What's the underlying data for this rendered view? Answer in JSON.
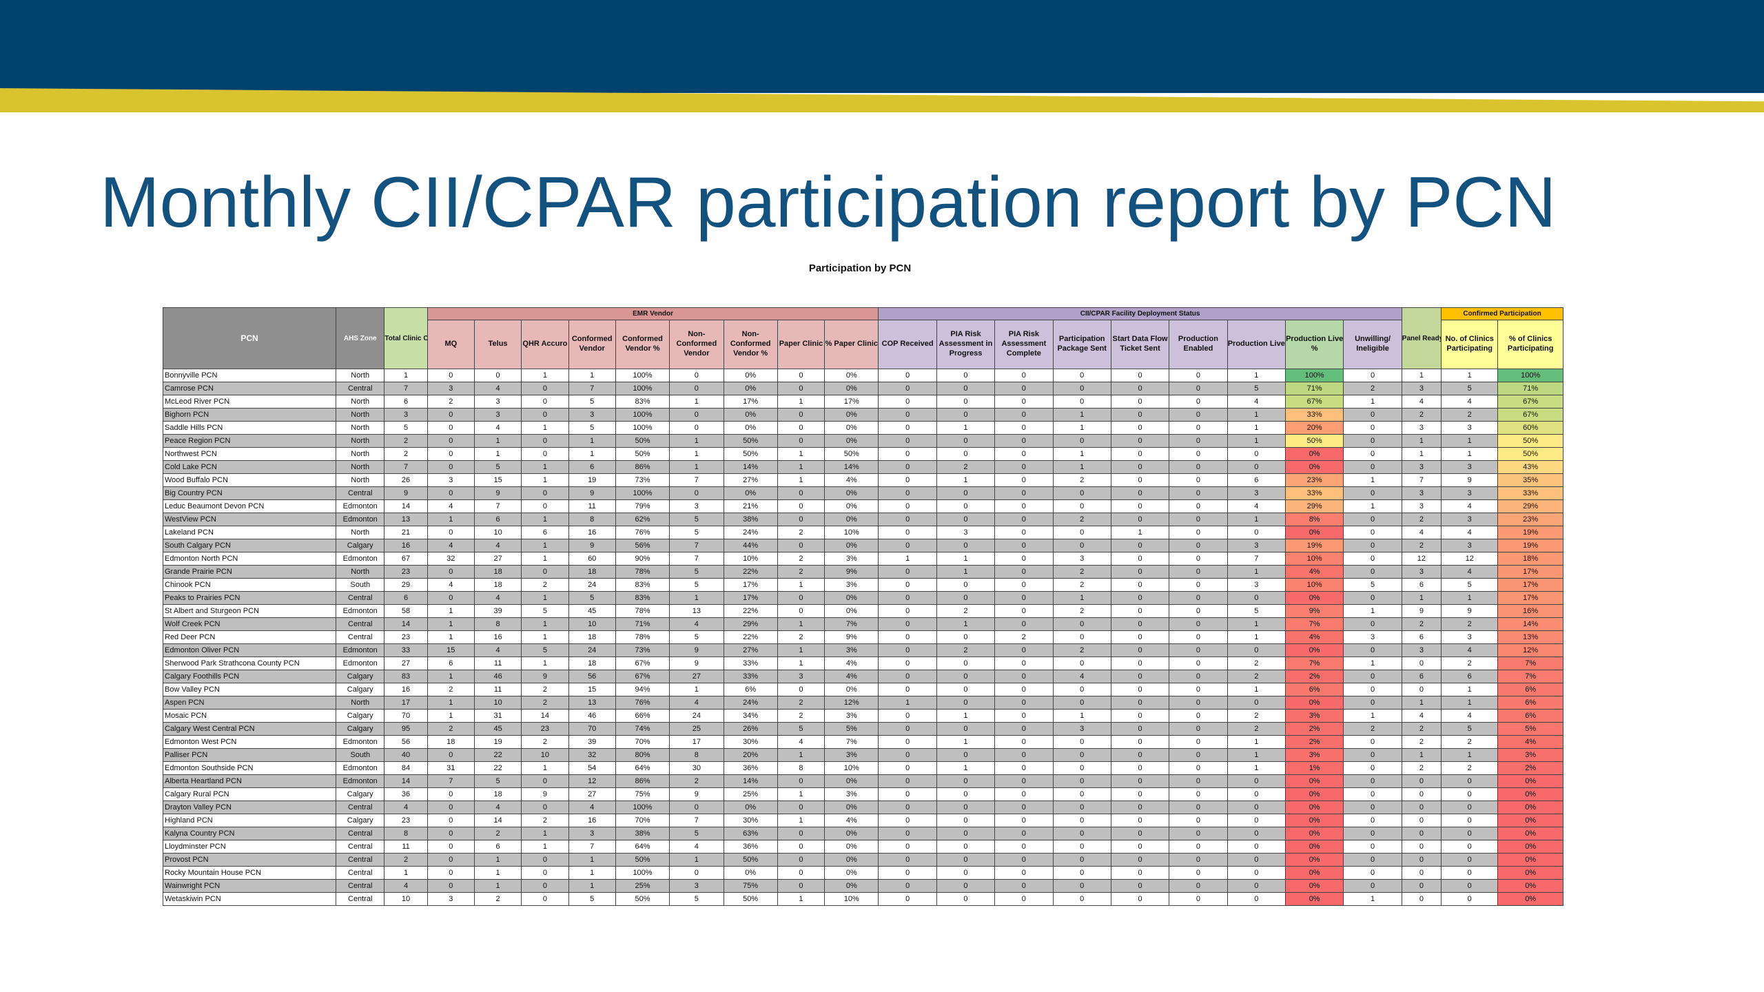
{
  "slide": {
    "title": "Monthly CII/CPAR participation report by PCN",
    "subtitle": "Participation by PCN"
  },
  "colors": {
    "banner": "#00426E",
    "stripe": "#D9C430",
    "title": "#13517E",
    "scale_low": "#F8696B",
    "scale_mid": "#FFEB84",
    "scale_high": "#63BE7B"
  },
  "table": {
    "groups": {
      "emr_vendor": "EMR Vendor",
      "deployment": "CII/CPAR Facility Deployment Status",
      "confirmed": "Confirmed Participation"
    },
    "headers": [
      "PCN",
      "AHS Zone",
      "Total Clinic Count (CRM)",
      "MQ",
      "Telus",
      "QHR Accuro",
      "Conformed Vendor",
      "Conformed Vendor %",
      "Non-Conformed Vendor",
      "Non-Conformed Vendor %",
      "Paper Clinic",
      "% Paper Clinic",
      "COP Received",
      "PIA Risk Assessment in Progress",
      "PIA Risk Assessment Complete",
      "Participation Package Sent",
      "Start Data Flow Ticket Sent",
      "Production Enabled",
      "Production Live",
      "Production Live %",
      "Unwilling/ Ineligible",
      "Panel Ready",
      "No. of Clinics Participating",
      "% of Clinics Participating"
    ],
    "rows": [
      [
        "Bonnyville PCN",
        "North",
        "1",
        "0",
        "0",
        "1",
        "1",
        "100%",
        "0",
        "0%",
        "0",
        "0%",
        "0",
        "0",
        "0",
        "0",
        "0",
        "0",
        "1",
        "100%",
        "0",
        "1",
        "1",
        "100%"
      ],
      [
        "Camrose PCN",
        "Central",
        "7",
        "3",
        "4",
        "0",
        "7",
        "100%",
        "0",
        "0%",
        "0",
        "0%",
        "0",
        "0",
        "0",
        "0",
        "0",
        "0",
        "5",
        "71%",
        "2",
        "3",
        "5",
        "71%"
      ],
      [
        "McLeod River PCN",
        "North",
        "6",
        "2",
        "3",
        "0",
        "5",
        "83%",
        "1",
        "17%",
        "1",
        "17%",
        "0",
        "0",
        "0",
        "0",
        "0",
        "0",
        "4",
        "67%",
        "1",
        "4",
        "4",
        "67%"
      ],
      [
        "Bighorn PCN",
        "North",
        "3",
        "0",
        "3",
        "0",
        "3",
        "100%",
        "0",
        "0%",
        "0",
        "0%",
        "0",
        "0",
        "0",
        "1",
        "0",
        "0",
        "1",
        "33%",
        "0",
        "2",
        "2",
        "67%"
      ],
      [
        "Saddle Hills PCN",
        "North",
        "5",
        "0",
        "4",
        "1",
        "5",
        "100%",
        "0",
        "0%",
        "0",
        "0%",
        "0",
        "1",
        "0",
        "1",
        "0",
        "0",
        "1",
        "20%",
        "0",
        "3",
        "3",
        "60%"
      ],
      [
        "Peace Region PCN",
        "North",
        "2",
        "0",
        "1",
        "0",
        "1",
        "50%",
        "1",
        "50%",
        "0",
        "0%",
        "0",
        "0",
        "0",
        "0",
        "0",
        "0",
        "1",
        "50%",
        "0",
        "1",
        "1",
        "50%"
      ],
      [
        "Northwest PCN",
        "North",
        "2",
        "0",
        "1",
        "0",
        "1",
        "50%",
        "1",
        "50%",
        "1",
        "50%",
        "0",
        "0",
        "0",
        "1",
        "0",
        "0",
        "0",
        "0%",
        "0",
        "1",
        "1",
        "50%"
      ],
      [
        "Cold Lake PCN",
        "North",
        "7",
        "0",
        "5",
        "1",
        "6",
        "86%",
        "1",
        "14%",
        "1",
        "14%",
        "0",
        "2",
        "0",
        "1",
        "0",
        "0",
        "0",
        "0%",
        "0",
        "3",
        "3",
        "43%"
      ],
      [
        "Wood Buffalo PCN",
        "North",
        "26",
        "3",
        "15",
        "1",
        "19",
        "73%",
        "7",
        "27%",
        "1",
        "4%",
        "0",
        "1",
        "0",
        "2",
        "0",
        "0",
        "6",
        "23%",
        "1",
        "7",
        "9",
        "35%"
      ],
      [
        "Big Country PCN",
        "Central",
        "9",
        "0",
        "9",
        "0",
        "9",
        "100%",
        "0",
        "0%",
        "0",
        "0%",
        "0",
        "0",
        "0",
        "0",
        "0",
        "0",
        "3",
        "33%",
        "0",
        "3",
        "3",
        "33%"
      ],
      [
        "Leduc Beaumont Devon PCN",
        "Edmonton",
        "14",
        "4",
        "7",
        "0",
        "11",
        "79%",
        "3",
        "21%",
        "0",
        "0%",
        "0",
        "0",
        "0",
        "0",
        "0",
        "0",
        "4",
        "29%",
        "1",
        "3",
        "4",
        "29%"
      ],
      [
        "WestView PCN",
        "Edmonton",
        "13",
        "1",
        "6",
        "1",
        "8",
        "62%",
        "5",
        "38%",
        "0",
        "0%",
        "0",
        "0",
        "0",
        "2",
        "0",
        "0",
        "1",
        "8%",
        "0",
        "2",
        "3",
        "23%"
      ],
      [
        "Lakeland PCN",
        "North",
        "21",
        "0",
        "10",
        "6",
        "16",
        "76%",
        "5",
        "24%",
        "2",
        "10%",
        "0",
        "3",
        "0",
        "0",
        "1",
        "0",
        "0",
        "0%",
        "0",
        "4",
        "4",
        "19%"
      ],
      [
        "South Calgary PCN",
        "Calgary",
        "16",
        "4",
        "4",
        "1",
        "9",
        "56%",
        "7",
        "44%",
        "0",
        "0%",
        "0",
        "0",
        "0",
        "0",
        "0",
        "0",
        "3",
        "19%",
        "0",
        "2",
        "3",
        "19%"
      ],
      [
        "Edmonton North PCN",
        "Edmonton",
        "67",
        "32",
        "27",
        "1",
        "60",
        "90%",
        "7",
        "10%",
        "2",
        "3%",
        "1",
        "1",
        "0",
        "3",
        "0",
        "0",
        "7",
        "10%",
        "0",
        "12",
        "12",
        "18%"
      ],
      [
        "Grande Prairie PCN",
        "North",
        "23",
        "0",
        "18",
        "0",
        "18",
        "78%",
        "5",
        "22%",
        "2",
        "9%",
        "0",
        "1",
        "0",
        "2",
        "0",
        "0",
        "1",
        "4%",
        "0",
        "3",
        "4",
        "17%"
      ],
      [
        "Chinook PCN",
        "South",
        "29",
        "4",
        "18",
        "2",
        "24",
        "83%",
        "5",
        "17%",
        "1",
        "3%",
        "0",
        "0",
        "0",
        "2",
        "0",
        "0",
        "3",
        "10%",
        "5",
        "6",
        "5",
        "17%"
      ],
      [
        "Peaks to Prairies PCN",
        "Central",
        "6",
        "0",
        "4",
        "1",
        "5",
        "83%",
        "1",
        "17%",
        "0",
        "0%",
        "0",
        "0",
        "0",
        "1",
        "0",
        "0",
        "0",
        "0%",
        "0",
        "1",
        "1",
        "17%"
      ],
      [
        "St Albert and Sturgeon PCN",
        "Edmonton",
        "58",
        "1",
        "39",
        "5",
        "45",
        "78%",
        "13",
        "22%",
        "0",
        "0%",
        "0",
        "2",
        "0",
        "2",
        "0",
        "0",
        "5",
        "9%",
        "1",
        "9",
        "9",
        "16%"
      ],
      [
        "Wolf Creek PCN",
        "Central",
        "14",
        "1",
        "8",
        "1",
        "10",
        "71%",
        "4",
        "29%",
        "1",
        "7%",
        "0",
        "1",
        "0",
        "0",
        "0",
        "0",
        "1",
        "7%",
        "0",
        "2",
        "2",
        "14%"
      ],
      [
        "Red Deer PCN",
        "Central",
        "23",
        "1",
        "16",
        "1",
        "18",
        "78%",
        "5",
        "22%",
        "2",
        "9%",
        "0",
        "0",
        "2",
        "0",
        "0",
        "0",
        "1",
        "4%",
        "3",
        "6",
        "3",
        "13%"
      ],
      [
        "Edmonton Oliver PCN",
        "Edmonton",
        "33",
        "15",
        "4",
        "5",
        "24",
        "73%",
        "9",
        "27%",
        "1",
        "3%",
        "0",
        "2",
        "0",
        "2",
        "0",
        "0",
        "0",
        "0%",
        "0",
        "3",
        "4",
        "12%"
      ],
      [
        "Sherwood Park Strathcona County PCN",
        "Edmonton",
        "27",
        "6",
        "11",
        "1",
        "18",
        "67%",
        "9",
        "33%",
        "1",
        "4%",
        "0",
        "0",
        "0",
        "0",
        "0",
        "0",
        "2",
        "7%",
        "1",
        "0",
        "2",
        "7%"
      ],
      [
        "Calgary Foothills PCN",
        "Calgary",
        "83",
        "1",
        "46",
        "9",
        "56",
        "67%",
        "27",
        "33%",
        "3",
        "4%",
        "0",
        "0",
        "0",
        "4",
        "0",
        "0",
        "2",
        "2%",
        "0",
        "6",
        "6",
        "7%"
      ],
      [
        "Bow Valley PCN",
        "Calgary",
        "16",
        "2",
        "11",
        "2",
        "15",
        "94%",
        "1",
        "6%",
        "0",
        "0%",
        "0",
        "0",
        "0",
        "0",
        "0",
        "0",
        "1",
        "6%",
        "0",
        "0",
        "1",
        "6%"
      ],
      [
        "Aspen PCN",
        "North",
        "17",
        "1",
        "10",
        "2",
        "13",
        "76%",
        "4",
        "24%",
        "2",
        "12%",
        "1",
        "0",
        "0",
        "0",
        "0",
        "0",
        "0",
        "0%",
        "0",
        "1",
        "1",
        "6%"
      ],
      [
        "Mosaic PCN",
        "Calgary",
        "70",
        "1",
        "31",
        "14",
        "46",
        "66%",
        "24",
        "34%",
        "2",
        "3%",
        "0",
        "1",
        "0",
        "1",
        "0",
        "0",
        "2",
        "3%",
        "1",
        "4",
        "4",
        "6%"
      ],
      [
        "Calgary West Central PCN",
        "Calgary",
        "95",
        "2",
        "45",
        "23",
        "70",
        "74%",
        "25",
        "26%",
        "5",
        "5%",
        "0",
        "0",
        "0",
        "3",
        "0",
        "0",
        "2",
        "2%",
        "2",
        "2",
        "5",
        "5%"
      ],
      [
        "Edmonton West PCN",
        "Edmonton",
        "56",
        "18",
        "19",
        "2",
        "39",
        "70%",
        "17",
        "30%",
        "4",
        "7%",
        "0",
        "1",
        "0",
        "0",
        "0",
        "0",
        "1",
        "2%",
        "0",
        "2",
        "2",
        "4%"
      ],
      [
        "Palliser PCN",
        "South",
        "40",
        "0",
        "22",
        "10",
        "32",
        "80%",
        "8",
        "20%",
        "1",
        "3%",
        "0",
        "0",
        "0",
        "0",
        "0",
        "0",
        "1",
        "3%",
        "0",
        "1",
        "1",
        "3%"
      ],
      [
        "Edmonton Southside PCN",
        "Edmonton",
        "84",
        "31",
        "22",
        "1",
        "54",
        "64%",
        "30",
        "36%",
        "8",
        "10%",
        "0",
        "1",
        "0",
        "0",
        "0",
        "0",
        "1",
        "1%",
        "0",
        "2",
        "2",
        "2%"
      ],
      [
        "Alberta Heartland PCN",
        "Edmonton",
        "14",
        "7",
        "5",
        "0",
        "12",
        "86%",
        "2",
        "14%",
        "0",
        "0%",
        "0",
        "0",
        "0",
        "0",
        "0",
        "0",
        "0",
        "0%",
        "0",
        "0",
        "0",
        "0%"
      ],
      [
        "Calgary Rural PCN",
        "Calgary",
        "36",
        "0",
        "18",
        "9",
        "27",
        "75%",
        "9",
        "25%",
        "1",
        "3%",
        "0",
        "0",
        "0",
        "0",
        "0",
        "0",
        "0",
        "0%",
        "0",
        "0",
        "0",
        "0%"
      ],
      [
        "Drayton Valley PCN",
        "Central",
        "4",
        "0",
        "4",
        "0",
        "4",
        "100%",
        "0",
        "0%",
        "0",
        "0%",
        "0",
        "0",
        "0",
        "0",
        "0",
        "0",
        "0",
        "0%",
        "0",
        "0",
        "0",
        "0%"
      ],
      [
        "Highland PCN",
        "Calgary",
        "23",
        "0",
        "14",
        "2",
        "16",
        "70%",
        "7",
        "30%",
        "1",
        "4%",
        "0",
        "0",
        "0",
        "0",
        "0",
        "0",
        "0",
        "0%",
        "0",
        "0",
        "0",
        "0%"
      ],
      [
        "Kalyna Country PCN",
        "Central",
        "8",
        "0",
        "2",
        "1",
        "3",
        "38%",
        "5",
        "63%",
        "0",
        "0%",
        "0",
        "0",
        "0",
        "0",
        "0",
        "0",
        "0",
        "0%",
        "0",
        "0",
        "0",
        "0%"
      ],
      [
        "Lloydminster PCN",
        "Central",
        "11",
        "0",
        "6",
        "1",
        "7",
        "64%",
        "4",
        "36%",
        "0",
        "0%",
        "0",
        "0",
        "0",
        "0",
        "0",
        "0",
        "0",
        "0%",
        "0",
        "0",
        "0",
        "0%"
      ],
      [
        "Provost PCN",
        "Central",
        "2",
        "0",
        "1",
        "0",
        "1",
        "50%",
        "1",
        "50%",
        "0",
        "0%",
        "0",
        "0",
        "0",
        "0",
        "0",
        "0",
        "0",
        "0%",
        "0",
        "0",
        "0",
        "0%"
      ],
      [
        "Rocky Mountain House PCN",
        "Central",
        "1",
        "0",
        "1",
        "0",
        "1",
        "100%",
        "0",
        "0%",
        "0",
        "0%",
        "0",
        "0",
        "0",
        "0",
        "0",
        "0",
        "0",
        "0%",
        "0",
        "0",
        "0",
        "0%"
      ],
      [
        "Wainwright PCN",
        "Central",
        "4",
        "0",
        "1",
        "0",
        "1",
        "25%",
        "3",
        "75%",
        "0",
        "0%",
        "0",
        "0",
        "0",
        "0",
        "0",
        "0",
        "0",
        "0%",
        "0",
        "0",
        "0",
        "0%"
      ],
      [
        "Wetaskiwin PCN",
        "Central",
        "10",
        "3",
        "2",
        "0",
        "5",
        "50%",
        "5",
        "50%",
        "1",
        "10%",
        "0",
        "0",
        "0",
        "0",
        "0",
        "0",
        "0",
        "0%",
        "1",
        "0",
        "0",
        "0%"
      ]
    ]
  }
}
